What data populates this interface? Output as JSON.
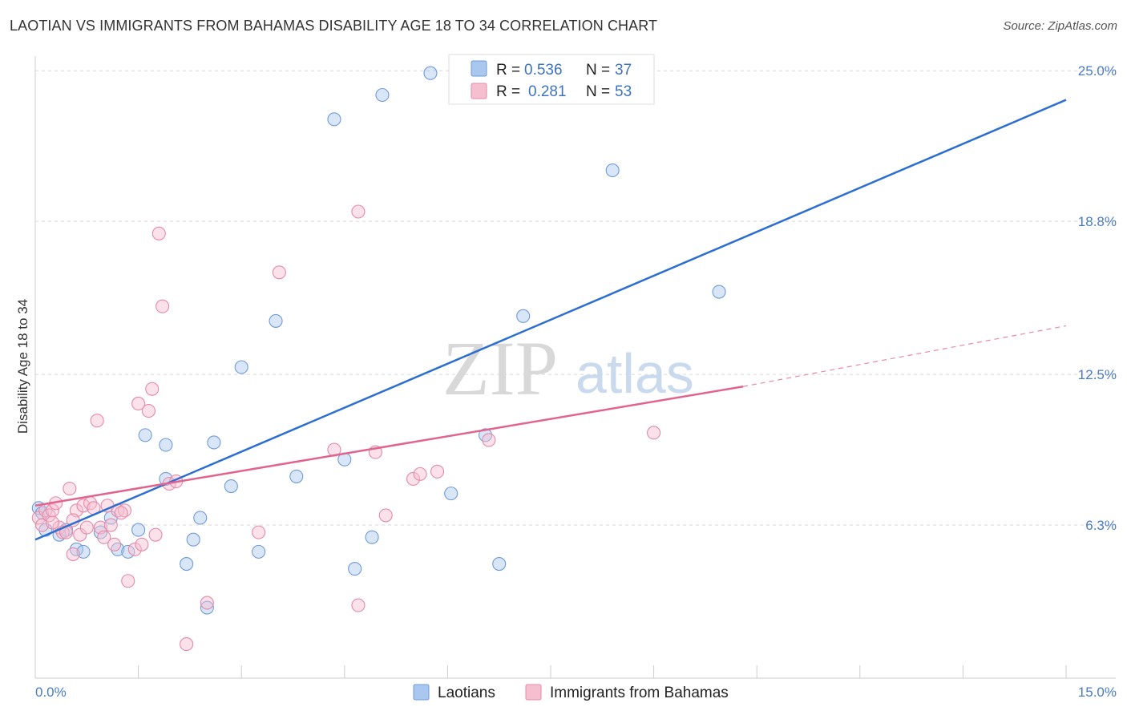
{
  "header": {
    "title": "LAOTIAN VS IMMIGRANTS FROM BAHAMAS DISABILITY AGE 18 TO 34 CORRELATION CHART",
    "source": "Source: ZipAtlas.com"
  },
  "watermark": {
    "zip": "ZIP",
    "atlas": "atlas"
  },
  "legend_top": {
    "items": [
      {
        "r_label": "R =",
        "r_value": "0.536",
        "n_label": "N =",
        "n_value": "37",
        "color": "#a9c7ef",
        "stroke": "#6f9bd8"
      },
      {
        "r_label": "R =",
        "r_value": "0.281",
        "n_label": "N =",
        "n_value": "53",
        "color": "#f6bfd0",
        "stroke": "#e48aa8"
      }
    ]
  },
  "legend_bottom": {
    "items": [
      {
        "label": "Laotians",
        "color": "#a9c7ef",
        "stroke": "#6f9bd8"
      },
      {
        "label": "Immigrants from Bahamas",
        "color": "#f6bfd0",
        "stroke": "#e48aa8"
      }
    ]
  },
  "chart_data": {
    "type": "scatter",
    "title": "LAOTIAN VS IMMIGRANTS FROM BAHAMAS DISABILITY AGE 18 TO 34 CORRELATION CHART",
    "xlabel": "",
    "ylabel": "Disability Age 18 to 34",
    "xlim": [
      0,
      15
    ],
    "ylim": [
      0,
      25.6
    ],
    "x_tick_labels": [
      "0.0%",
      "15.0%"
    ],
    "y_ticks": [
      6.3,
      12.5,
      18.8,
      25.0
    ],
    "y_tick_labels": [
      "6.3%",
      "12.5%",
      "18.8%",
      "25.0%"
    ],
    "grid": true,
    "legend_position": "top-center",
    "series": [
      {
        "name": "Laotians",
        "color": "#6f9bd8",
        "fill": "#a9c7ef",
        "trend": {
          "x": [
            0,
            15
          ],
          "y": [
            5.7,
            23.8
          ]
        },
        "points": [
          [
            0.05,
            7.0
          ],
          [
            0.1,
            6.8
          ],
          [
            0.15,
            6.1
          ],
          [
            0.35,
            5.9
          ],
          [
            0.45,
            6.1
          ],
          [
            0.6,
            5.3
          ],
          [
            0.7,
            5.2
          ],
          [
            0.95,
            6.0
          ],
          [
            1.1,
            6.6
          ],
          [
            1.2,
            5.3
          ],
          [
            1.35,
            5.2
          ],
          [
            1.5,
            6.1
          ],
          [
            1.6,
            10.0
          ],
          [
            1.9,
            8.2
          ],
          [
            1.9,
            9.6
          ],
          [
            2.2,
            4.7
          ],
          [
            2.3,
            5.7
          ],
          [
            2.4,
            6.6
          ],
          [
            2.5,
            2.9
          ],
          [
            2.6,
            9.7
          ],
          [
            2.85,
            7.9
          ],
          [
            3.0,
            12.8
          ],
          [
            3.25,
            5.2
          ],
          [
            3.5,
            14.7
          ],
          [
            3.8,
            8.3
          ],
          [
            4.35,
            23.0
          ],
          [
            4.5,
            9.0
          ],
          [
            4.65,
            4.5
          ],
          [
            4.9,
            5.8
          ],
          [
            5.05,
            24.0
          ],
          [
            5.75,
            24.9
          ],
          [
            6.05,
            7.6
          ],
          [
            6.55,
            10.0
          ],
          [
            6.75,
            4.7
          ],
          [
            7.1,
            14.9
          ],
          [
            8.4,
            20.9
          ],
          [
            9.95,
            15.9
          ]
        ]
      },
      {
        "name": "Immigrants from Bahamas",
        "color": "#e48aa8",
        "fill": "#f6bfd0",
        "trend": {
          "x": [
            0,
            10.3
          ],
          "y": [
            7.1,
            12.0
          ]
        },
        "trend_dashed": {
          "x": [
            10.3,
            15
          ],
          "y": [
            12.0,
            14.5
          ]
        },
        "points": [
          [
            0.05,
            6.6
          ],
          [
            0.1,
            6.3
          ],
          [
            0.15,
            6.9
          ],
          [
            0.2,
            6.7
          ],
          [
            0.25,
            6.9
          ],
          [
            0.3,
            7.2
          ],
          [
            0.35,
            6.2
          ],
          [
            0.4,
            6.0
          ],
          [
            0.45,
            6.0
          ],
          [
            0.5,
            7.8
          ],
          [
            0.55,
            5.1
          ],
          [
            0.6,
            6.9
          ],
          [
            0.65,
            5.9
          ],
          [
            0.7,
            7.1
          ],
          [
            0.75,
            6.2
          ],
          [
            0.8,
            7.2
          ],
          [
            0.85,
            7.0
          ],
          [
            0.9,
            10.6
          ],
          [
            0.95,
            6.2
          ],
          [
            1.0,
            5.8
          ],
          [
            1.05,
            7.1
          ],
          [
            1.1,
            6.3
          ],
          [
            1.15,
            5.5
          ],
          [
            1.2,
            6.9
          ],
          [
            1.3,
            6.9
          ],
          [
            1.35,
            4.0
          ],
          [
            1.45,
            5.3
          ],
          [
            1.5,
            11.3
          ],
          [
            1.55,
            5.5
          ],
          [
            1.65,
            11.0
          ],
          [
            1.7,
            11.9
          ],
          [
            1.75,
            5.9
          ],
          [
            1.8,
            18.3
          ],
          [
            1.85,
            15.3
          ],
          [
            1.95,
            8.0
          ],
          [
            2.05,
            8.1
          ],
          [
            2.2,
            1.4
          ],
          [
            2.5,
            3.1
          ],
          [
            3.25,
            6.0
          ],
          [
            3.55,
            16.7
          ],
          [
            4.35,
            9.4
          ],
          [
            4.7,
            19.2
          ],
          [
            4.7,
            3.0
          ],
          [
            4.95,
            9.3
          ],
          [
            5.1,
            6.7
          ],
          [
            5.5,
            8.2
          ],
          [
            5.6,
            8.4
          ],
          [
            5.85,
            8.5
          ],
          [
            6.6,
            9.8
          ],
          [
            9.0,
            10.1
          ],
          [
            1.25,
            6.8
          ],
          [
            0.55,
            6.5
          ],
          [
            0.25,
            6.4
          ]
        ]
      }
    ]
  }
}
